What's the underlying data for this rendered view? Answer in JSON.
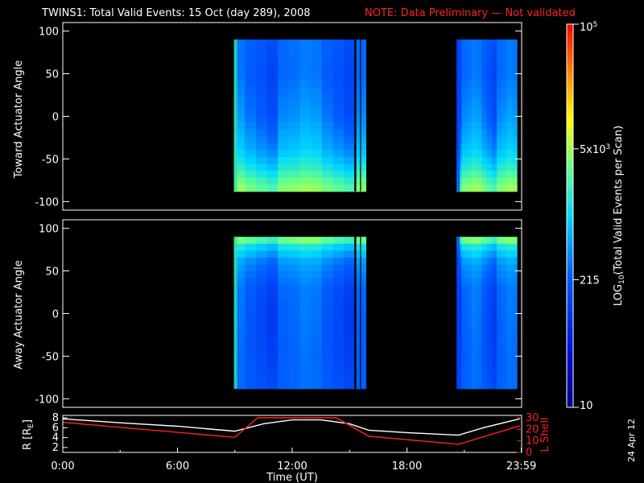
{
  "header": {
    "title": "TWINS1: Total Valid Events: 15 Oct (day 289), 2008",
    "note": "NOTE: Data Preliminary — Not validated"
  },
  "side_date": "24 Apr 12",
  "colors": {
    "background": "#000000",
    "axes": "#ffffff",
    "note": "#ff2020",
    "r_line": "#ffffff",
    "lshell_line": "#ff2020"
  },
  "chart_data": [
    {
      "type": "heatmap",
      "ylabel": "Toward Actuator Angle",
      "yticks": [
        "100",
        "50",
        "0",
        "-50",
        "-100"
      ],
      "ylim": [
        -110,
        110
      ],
      "xlim": [
        0,
        24
      ],
      "data_y_range": [
        -88,
        90
      ],
      "data_intervals_ut": [
        [
          8.95,
          15.85
        ],
        [
          20.6,
          23.75
        ]
      ],
      "data_gaps_ut": [
        [
          15.25,
          15.35
        ],
        [
          15.55,
          15.6
        ]
      ],
      "profile_angle": [
        90,
        50,
        0,
        -40,
        -60,
        -75,
        -88
      ],
      "profile_log10_events": [
        2.4,
        2.35,
        2.5,
        2.8,
        3.1,
        3.4,
        3.6
      ],
      "segment_level_log10": [
        0.2,
        0.0,
        -0.15,
        -0.3,
        0.1,
        0.15,
        0.25
      ]
    },
    {
      "type": "heatmap",
      "ylabel": "Away Actuator Angle",
      "yticks": [
        "100",
        "50",
        "0",
        "-50",
        "-100"
      ],
      "ylim": [
        -110,
        110
      ],
      "xlim": [
        0,
        24
      ],
      "data_y_range": [
        -88,
        90
      ],
      "data_intervals_ut": [
        [
          8.95,
          15.85
        ],
        [
          20.6,
          23.75
        ]
      ],
      "data_gaps_ut": [
        [
          15.25,
          15.35
        ],
        [
          15.55,
          15.6
        ]
      ],
      "profile_angle": [
        90,
        80,
        60,
        30,
        0,
        -50,
        -88
      ],
      "profile_log10_events": [
        3.7,
        3.1,
        2.6,
        2.35,
        2.3,
        2.3,
        2.35
      ],
      "segment_level_log10": [
        0.2,
        0.0,
        -0.15,
        -0.3,
        0.1,
        0.15,
        0.25
      ]
    },
    {
      "type": "line",
      "xlabel": "Time (UT)",
      "xticks": [
        "0:00",
        "6:00",
        "12:00",
        "18:00",
        "23:59"
      ],
      "x": [
        0,
        9.0,
        12.0,
        16.0,
        20.7,
        23.9
      ],
      "series": [
        {
          "name": "R [RE]",
          "axis": "left",
          "color": "#ffffff",
          "x": [
            0,
            3,
            6,
            9,
            10.5,
            12,
            13.5,
            15,
            16,
            18,
            20.7,
            22,
            23.9
          ],
          "values": [
            7.8,
            7.0,
            6.3,
            5.3,
            6.8,
            7.6,
            7.6,
            6.8,
            5.5,
            5.0,
            4.5,
            6.0,
            7.8
          ]
        },
        {
          "name": "L Shell",
          "axis": "right",
          "color": "#ff2020",
          "x": [
            0,
            9.0,
            10.2,
            14.3,
            16.0,
            20.7,
            23.9
          ],
          "values": [
            26,
            13,
            30,
            30,
            14,
            7,
            23
          ]
        }
      ],
      "ylabel_left": "R [RE]",
      "yticks_left": [
        "8",
        "6",
        "4",
        "2"
      ],
      "ylim_left": [
        1,
        8.5
      ],
      "ylabel_right": "L Shell",
      "yticks_right": [
        "30",
        "20",
        "10",
        "0"
      ],
      "ylim_right": [
        0,
        32
      ]
    }
  ],
  "colorbar": {
    "label": "LOG10(Total Valid Events per Scan)",
    "label_main": "LOG",
    "label_sub": "10",
    "label_rest": "(Total Valid Events per Scan)",
    "range_log10": [
      1,
      5
    ],
    "ticks": [
      {
        "value": 5.0,
        "label": "10",
        "sup": "5"
      },
      {
        "value": 3.699,
        "label": "5x10",
        "sup": "3"
      },
      {
        "value": 2.332,
        "label": "215",
        "sup": ""
      },
      {
        "value": 1.0,
        "label": "10",
        "sup": ""
      }
    ]
  }
}
